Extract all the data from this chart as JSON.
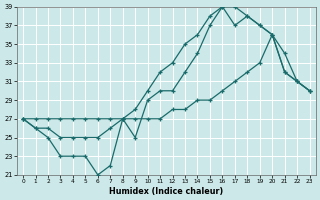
{
  "xlabel": "Humidex (Indice chaleur)",
  "bg_color": "#cce8e8",
  "grid_color": "#ffffff",
  "line_color": "#1a6b6b",
  "ylim": [
    21,
    39
  ],
  "xlim": [
    -0.5,
    23.5
  ],
  "yticks": [
    21,
    23,
    25,
    27,
    29,
    31,
    33,
    35,
    37,
    39
  ],
  "xticks": [
    0,
    1,
    2,
    3,
    4,
    5,
    6,
    7,
    8,
    9,
    10,
    11,
    12,
    13,
    14,
    15,
    16,
    17,
    18,
    19,
    20,
    21,
    22,
    23
  ],
  "line1_x": [
    0,
    1,
    2,
    3,
    4,
    5,
    6,
    7,
    8,
    9,
    10,
    11,
    12,
    13,
    14,
    15,
    16,
    17,
    18,
    19,
    20,
    21,
    22,
    23
  ],
  "line1_y": [
    27,
    26,
    26,
    25,
    25,
    25,
    25,
    26,
    27,
    28,
    30,
    32,
    33,
    35,
    36,
    38,
    39,
    39,
    38,
    37,
    36,
    32,
    31,
    30
  ],
  "line2_x": [
    0,
    1,
    2,
    3,
    4,
    5,
    6,
    7,
    8,
    9,
    10,
    11,
    12,
    13,
    14,
    15,
    16,
    17,
    18,
    19,
    20,
    21,
    22,
    23
  ],
  "line2_y": [
    27,
    26,
    25,
    23,
    23,
    23,
    21,
    22,
    27,
    25,
    29,
    30,
    30,
    32,
    34,
    37,
    39,
    37,
    38,
    37,
    36,
    32,
    31,
    30
  ],
  "line3_x": [
    0,
    1,
    2,
    3,
    4,
    5,
    6,
    7,
    8,
    9,
    10,
    11,
    12,
    13,
    14,
    15,
    16,
    17,
    18,
    19,
    20,
    21,
    22,
    23
  ],
  "line3_y": [
    27,
    27,
    27,
    27,
    27,
    27,
    27,
    27,
    27,
    27,
    27,
    27,
    28,
    28,
    29,
    29,
    30,
    31,
    32,
    33,
    36,
    34,
    31,
    30
  ]
}
